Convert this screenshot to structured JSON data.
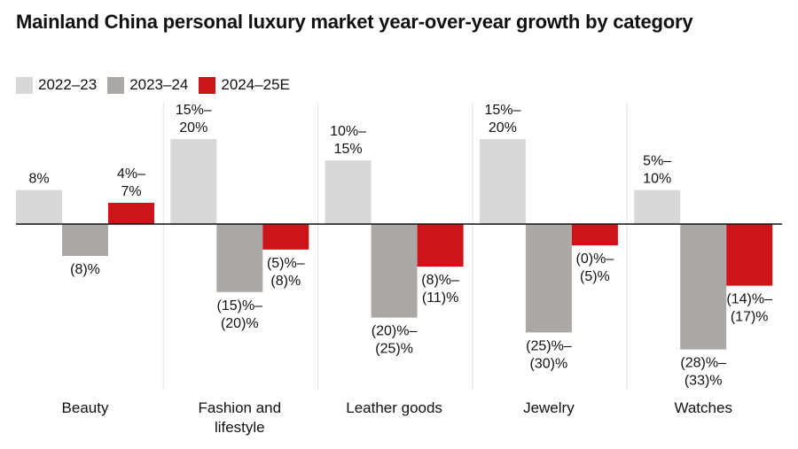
{
  "chart_data": {
    "type": "bar",
    "title": "Mainland China personal luxury market year-over-year growth by category",
    "xlabel": "",
    "ylabel": "",
    "grid": false,
    "legend_position": "top-left",
    "categories": [
      [
        "Beauty"
      ],
      [
        "Fashion and",
        "lifestyle"
      ],
      [
        "Leather goods"
      ],
      [
        "Jewelry"
      ],
      [
        "Watches"
      ]
    ],
    "series": [
      {
        "name": "2022–23",
        "color": "#d9d8d7",
        "values": [
          8,
          20,
          15,
          20,
          8
        ],
        "labels": [
          [
            "8%"
          ],
          [
            "15%–",
            "20%"
          ],
          [
            "10%–",
            "15%"
          ],
          [
            "15%–",
            "20%"
          ],
          [
            "5%–",
            "10%"
          ]
        ]
      },
      {
        "name": "2023–24",
        "color": "#aca8a5",
        "values": [
          -7.5,
          -16,
          -22,
          -25.5,
          -29.5
        ],
        "labels": [
          [
            "(8)%"
          ],
          [
            "(15)%–",
            "(20)%"
          ],
          [
            "(20)%–",
            "(25)%"
          ],
          [
            "(25)%–",
            "(30)%"
          ],
          [
            "(28)%–",
            "(33)%"
          ]
        ]
      },
      {
        "name": "2024–25E",
        "color": "#cc1419",
        "values": [
          5,
          -6,
          -10,
          -5,
          -14.5
        ],
        "labels": [
          [
            "4%–",
            "7%"
          ],
          [
            "(5)%–",
            "(8)%"
          ],
          [
            "(8)%–",
            "(11)%"
          ],
          [
            "(0)%–",
            "(5)%"
          ],
          [
            "(14)%–",
            "(17)%"
          ]
        ]
      }
    ]
  }
}
